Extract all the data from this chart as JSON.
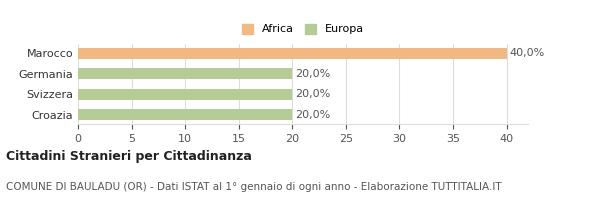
{
  "categories": [
    "Croazia",
    "Svizzera",
    "Germania",
    "Marocco"
  ],
  "values": [
    20.0,
    20.0,
    20.0,
    40.0
  ],
  "bar_colors": [
    "#b5cc96",
    "#b5cc96",
    "#b5cc96",
    "#f0b984"
  ],
  "legend_labels": [
    "Africa",
    "Europa"
  ],
  "legend_colors": [
    "#f0b984",
    "#b5cc96"
  ],
  "value_labels": [
    "20,0%",
    "20,0%",
    "20,0%",
    "40,0%"
  ],
  "xlim": [
    0,
    42
  ],
  "xticks": [
    0,
    5,
    10,
    15,
    20,
    25,
    30,
    35,
    40
  ],
  "title": "Cittadini Stranieri per Cittadinanza",
  "subtitle": "COMUNE DI BAULADU (OR) - Dati ISTAT al 1° gennaio di ogni anno - Elaborazione TUTTITALIA.IT",
  "title_fontsize": 9,
  "subtitle_fontsize": 7.5,
  "tick_fontsize": 8,
  "label_fontsize": 8,
  "value_fontsize": 8,
  "background_color": "#ffffff",
  "grid_color": "#dddddd"
}
